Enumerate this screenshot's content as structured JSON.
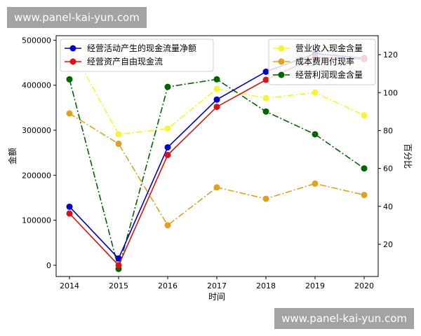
{
  "watermarks": {
    "top": "www.panel-kai-yun.com",
    "bottom": "www.panel-kai-yun.com"
  },
  "chart_data": {
    "type": "line",
    "title": "",
    "xlabel": "时间",
    "ylabel_left": "金额",
    "ylabel_right": "百分比",
    "categories": [
      "2014",
      "2015",
      "2016",
      "2017",
      "2018",
      "2019",
      "2020"
    ],
    "ylim_left": [
      -25000,
      510000
    ],
    "ylim_right": [
      3,
      130
    ],
    "yticks_left": [
      "0",
      "100000",
      "200000",
      "300000",
      "400000",
      "500000"
    ],
    "yticks_right": [
      "20",
      "40",
      "60",
      "80",
      "100",
      "120"
    ],
    "grid": false,
    "legend_left_position": "top-left",
    "legend_right_position": "top-right",
    "series_left": [
      {
        "name": "经营活动产生的现金流量净额",
        "color": "#0000cc",
        "style": "solid",
        "values": [
          130000,
          15000,
          262000,
          368000,
          430000,
          470000,
          460000
        ]
      },
      {
        "name": "经营资产自由现金流",
        "color": "#dd1111",
        "style": "solid",
        "values": [
          115000,
          0,
          245000,
          352000,
          412000,
          462000,
          458000
        ]
      }
    ],
    "series_right": [
      {
        "name": "营业收入现金含量",
        "color": "#f5f533",
        "style": "dashdot",
        "values": [
          125,
          78,
          81,
          102,
          97,
          100,
          88
        ]
      },
      {
        "name": "成本费用付现率",
        "color": "#e0a020",
        "style": "dashdot",
        "values": [
          89,
          73,
          30,
          50,
          44,
          52,
          46
        ]
      },
      {
        "name": "经营利润现金含量",
        "color": "#006400",
        "style": "dashdot",
        "values": [
          107,
          7,
          103,
          107,
          90,
          78,
          60
        ]
      }
    ]
  }
}
